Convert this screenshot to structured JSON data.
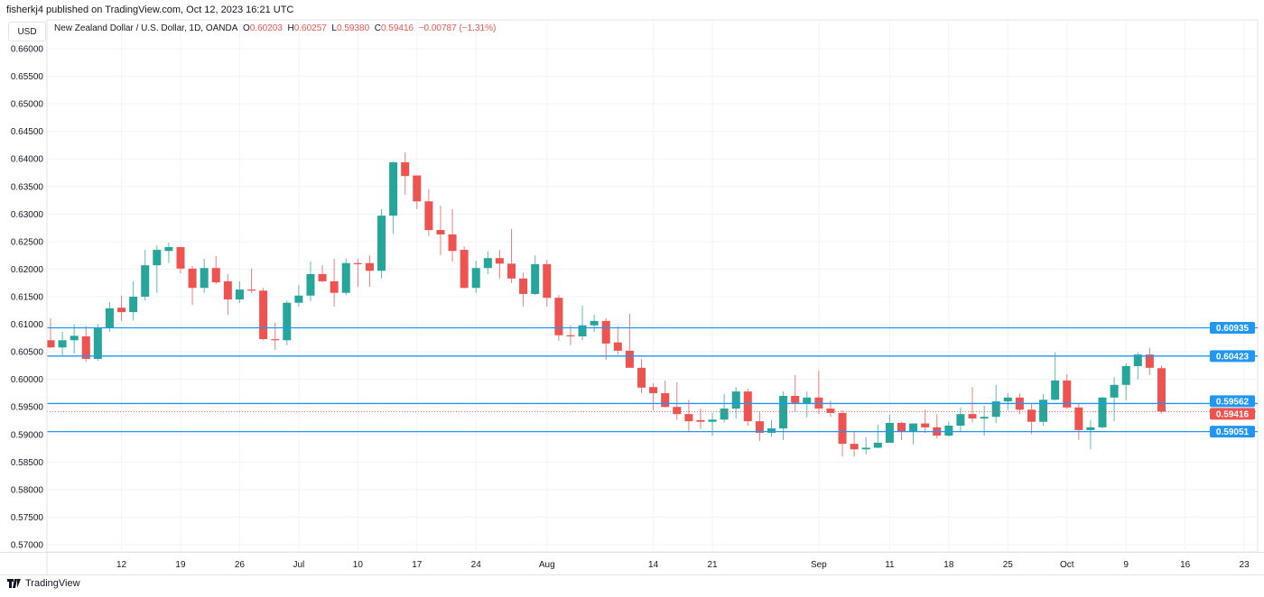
{
  "header": {
    "published": "fisherkj4 published on TradingView.com, Oct 12, 2023 16:21 UTC",
    "currency": "USD",
    "symbol": "New Zealand Dollar / U.S. Dollar, 1D, OANDA",
    "o_label": "O",
    "o": "0.60203",
    "h_label": "H",
    "h": "0.60257",
    "l_label": "L",
    "l": "0.59380",
    "c_label": "C",
    "c": "0.59416",
    "change": "−0.00787",
    "change_pct": "(−1.31%)"
  },
  "footer": {
    "brand": "TradingView"
  },
  "colors": {
    "up": "#26a69a",
    "down": "#ef5350",
    "level": "#2196f3",
    "grid": "#f0f3fa"
  },
  "chart_data": {
    "type": "candlestick",
    "title": "New Zealand Dollar / U.S. Dollar, 1D, OANDA",
    "ylim": [
      0.5675,
      0.6625
    ],
    "y_ticks": [
      "0.66000",
      "0.65500",
      "0.65000",
      "0.64500",
      "0.64000",
      "0.63500",
      "0.63000",
      "0.62500",
      "0.62000",
      "0.61500",
      "0.61000",
      "0.60500",
      "0.60000",
      "0.59500",
      "0.59000",
      "0.58500",
      "0.58000",
      "0.57500",
      "0.57000"
    ],
    "x_ticks": [
      {
        "index": 6,
        "label": "12"
      },
      {
        "index": 11,
        "label": "19"
      },
      {
        "index": 16,
        "label": "26"
      },
      {
        "index": 21,
        "label": "Jul"
      },
      {
        "index": 26,
        "label": "10"
      },
      {
        "index": 31,
        "label": "17"
      },
      {
        "index": 36,
        "label": "24"
      },
      {
        "index": 42,
        "label": "Aug"
      },
      {
        "index": 51,
        "label": "14"
      },
      {
        "index": 56,
        "label": "21"
      },
      {
        "index": 65,
        "label": "Sep"
      },
      {
        "index": 71,
        "label": "11"
      },
      {
        "index": 76,
        "label": "18"
      },
      {
        "index": 81,
        "label": "25"
      },
      {
        "index": 86,
        "label": "Oct"
      },
      {
        "index": 91,
        "label": "9"
      },
      {
        "index": 96,
        "label": "16"
      },
      {
        "index": 101,
        "label": "23"
      }
    ],
    "levels": [
      {
        "label": "0.60935",
        "value": 0.60935,
        "kind": "line"
      },
      {
        "label": "0.60423",
        "value": 0.60423,
        "kind": "line"
      },
      {
        "label": "0.59562",
        "value": 0.59562,
        "kind": "line"
      },
      {
        "label": "0.59051",
        "value": 0.59051,
        "kind": "line"
      },
      {
        "label": "0.59416",
        "value": 0.59416,
        "kind": "last"
      }
    ],
    "ohlc": [
      [
        0.6071,
        0.6111,
        0.6057,
        0.6058
      ],
      [
        0.6058,
        0.6086,
        0.6042,
        0.6071
      ],
      [
        0.6071,
        0.61,
        0.6047,
        0.6079
      ],
      [
        0.6078,
        0.6097,
        0.6032,
        0.6037
      ],
      [
        0.6037,
        0.61,
        0.6034,
        0.6094
      ],
      [
        0.6094,
        0.614,
        0.6086,
        0.6129
      ],
      [
        0.613,
        0.6152,
        0.6106,
        0.6122
      ],
      [
        0.6122,
        0.6178,
        0.6107,
        0.615
      ],
      [
        0.615,
        0.6235,
        0.6143,
        0.6207
      ],
      [
        0.6207,
        0.6243,
        0.6157,
        0.6235
      ],
      [
        0.6233,
        0.6248,
        0.6211,
        0.624
      ],
      [
        0.624,
        0.624,
        0.6193,
        0.6201
      ],
      [
        0.6201,
        0.6206,
        0.6135,
        0.6166
      ],
      [
        0.6166,
        0.6219,
        0.6157,
        0.6202
      ],
      [
        0.6202,
        0.6224,
        0.6173,
        0.6176
      ],
      [
        0.6178,
        0.6191,
        0.6117,
        0.6145
      ],
      [
        0.6145,
        0.6178,
        0.6139,
        0.6163
      ],
      [
        0.6163,
        0.6201,
        0.6157,
        0.6161
      ],
      [
        0.6161,
        0.6166,
        0.6071,
        0.6073
      ],
      [
        0.6073,
        0.6103,
        0.6053,
        0.6071
      ],
      [
        0.6071,
        0.6143,
        0.6062,
        0.6139
      ],
      [
        0.6139,
        0.6171,
        0.6132,
        0.6152
      ],
      [
        0.6152,
        0.6214,
        0.6142,
        0.6191
      ],
      [
        0.6191,
        0.6207,
        0.6176,
        0.6178
      ],
      [
        0.6178,
        0.6219,
        0.6132,
        0.6157
      ],
      [
        0.6157,
        0.6219,
        0.6153,
        0.6211
      ],
      [
        0.6211,
        0.6219,
        0.6168,
        0.6209
      ],
      [
        0.6211,
        0.6225,
        0.6168,
        0.6197
      ],
      [
        0.6197,
        0.6309,
        0.6183,
        0.6297
      ],
      [
        0.6297,
        0.6395,
        0.6264,
        0.6394
      ],
      [
        0.6394,
        0.6412,
        0.6335,
        0.6369
      ],
      [
        0.637,
        0.637,
        0.6309,
        0.6323
      ],
      [
        0.6323,
        0.6345,
        0.626,
        0.6271
      ],
      [
        0.6271,
        0.6315,
        0.6225,
        0.6263
      ],
      [
        0.6263,
        0.6309,
        0.6214,
        0.6233
      ],
      [
        0.6235,
        0.6241,
        0.6165,
        0.6166
      ],
      [
        0.6166,
        0.6215,
        0.6157,
        0.6202
      ],
      [
        0.6202,
        0.6232,
        0.6191,
        0.622
      ],
      [
        0.622,
        0.6235,
        0.6183,
        0.621
      ],
      [
        0.621,
        0.6273,
        0.6175,
        0.6183
      ],
      [
        0.6183,
        0.6194,
        0.6132,
        0.6155
      ],
      [
        0.6155,
        0.6225,
        0.6153,
        0.6209
      ],
      [
        0.6209,
        0.6217,
        0.6132,
        0.6148
      ],
      [
        0.6148,
        0.6153,
        0.607,
        0.608
      ],
      [
        0.608,
        0.6098,
        0.6062,
        0.6078
      ],
      [
        0.6078,
        0.6134,
        0.6071,
        0.6098
      ],
      [
        0.6098,
        0.6117,
        0.6086,
        0.6106
      ],
      [
        0.6106,
        0.6111,
        0.6036,
        0.6065
      ],
      [
        0.6067,
        0.6096,
        0.6045,
        0.6052
      ],
      [
        0.6052,
        0.6119,
        0.6021,
        0.6021
      ],
      [
        0.6021,
        0.6037,
        0.5975,
        0.5985
      ],
      [
        0.5986,
        0.5993,
        0.5944,
        0.5975
      ],
      [
        0.5975,
        0.5998,
        0.5949,
        0.595
      ],
      [
        0.595,
        0.5995,
        0.5927,
        0.5937
      ],
      [
        0.5937,
        0.5963,
        0.5906,
        0.5924
      ],
      [
        0.5926,
        0.5947,
        0.591,
        0.5923
      ],
      [
        0.5923,
        0.5939,
        0.5898,
        0.5927
      ],
      [
        0.5927,
        0.5973,
        0.5922,
        0.5947
      ],
      [
        0.5947,
        0.5986,
        0.5929,
        0.5978
      ],
      [
        0.5978,
        0.5983,
        0.5916,
        0.5924
      ],
      [
        0.5924,
        0.5942,
        0.5888,
        0.5903
      ],
      [
        0.5903,
        0.5926,
        0.5896,
        0.5911
      ],
      [
        0.5911,
        0.5978,
        0.589,
        0.597
      ],
      [
        0.597,
        0.6008,
        0.5941,
        0.5957
      ],
      [
        0.5957,
        0.5978,
        0.5931,
        0.5967
      ],
      [
        0.5967,
        0.6016,
        0.5937,
        0.5947
      ],
      [
        0.5947,
        0.5962,
        0.5932,
        0.5939
      ],
      [
        0.5939,
        0.5944,
        0.586,
        0.5883
      ],
      [
        0.5883,
        0.5905,
        0.586,
        0.5873
      ],
      [
        0.5873,
        0.5895,
        0.5864,
        0.5876
      ],
      [
        0.5876,
        0.5918,
        0.5875,
        0.5885
      ],
      [
        0.5885,
        0.5936,
        0.5885,
        0.5921
      ],
      [
        0.5921,
        0.5923,
        0.589,
        0.5905
      ],
      [
        0.5905,
        0.592,
        0.5882,
        0.592
      ],
      [
        0.592,
        0.5945,
        0.5903,
        0.5913
      ],
      [
        0.5913,
        0.5937,
        0.5893,
        0.5898
      ],
      [
        0.5898,
        0.5923,
        0.5896,
        0.5916
      ],
      [
        0.5916,
        0.5949,
        0.5906,
        0.5937
      ],
      [
        0.5937,
        0.5986,
        0.5922,
        0.5929
      ],
      [
        0.5929,
        0.5952,
        0.5898,
        0.5932
      ],
      [
        0.5932,
        0.599,
        0.5921,
        0.596
      ],
      [
        0.596,
        0.5975,
        0.5944,
        0.5967
      ],
      [
        0.5967,
        0.5975,
        0.5937,
        0.5945
      ],
      [
        0.5945,
        0.5957,
        0.5901,
        0.5923
      ],
      [
        0.5923,
        0.5973,
        0.5916,
        0.5963
      ],
      [
        0.5963,
        0.6049,
        0.5962,
        0.5998
      ],
      [
        0.5998,
        0.6009,
        0.5947,
        0.5949
      ],
      [
        0.5949,
        0.5957,
        0.589,
        0.5908
      ],
      [
        0.5908,
        0.5926,
        0.5873,
        0.5913
      ],
      [
        0.5913,
        0.5968,
        0.5911,
        0.5967
      ],
      [
        0.5967,
        0.6004,
        0.5924,
        0.599
      ],
      [
        0.599,
        0.6029,
        0.5962,
        0.6024
      ],
      [
        0.6024,
        0.6049,
        0.6,
        0.6045
      ],
      [
        0.6045,
        0.6057,
        0.6008,
        0.6021
      ],
      [
        0.60203,
        0.60257,
        0.5938,
        0.59416
      ]
    ]
  }
}
